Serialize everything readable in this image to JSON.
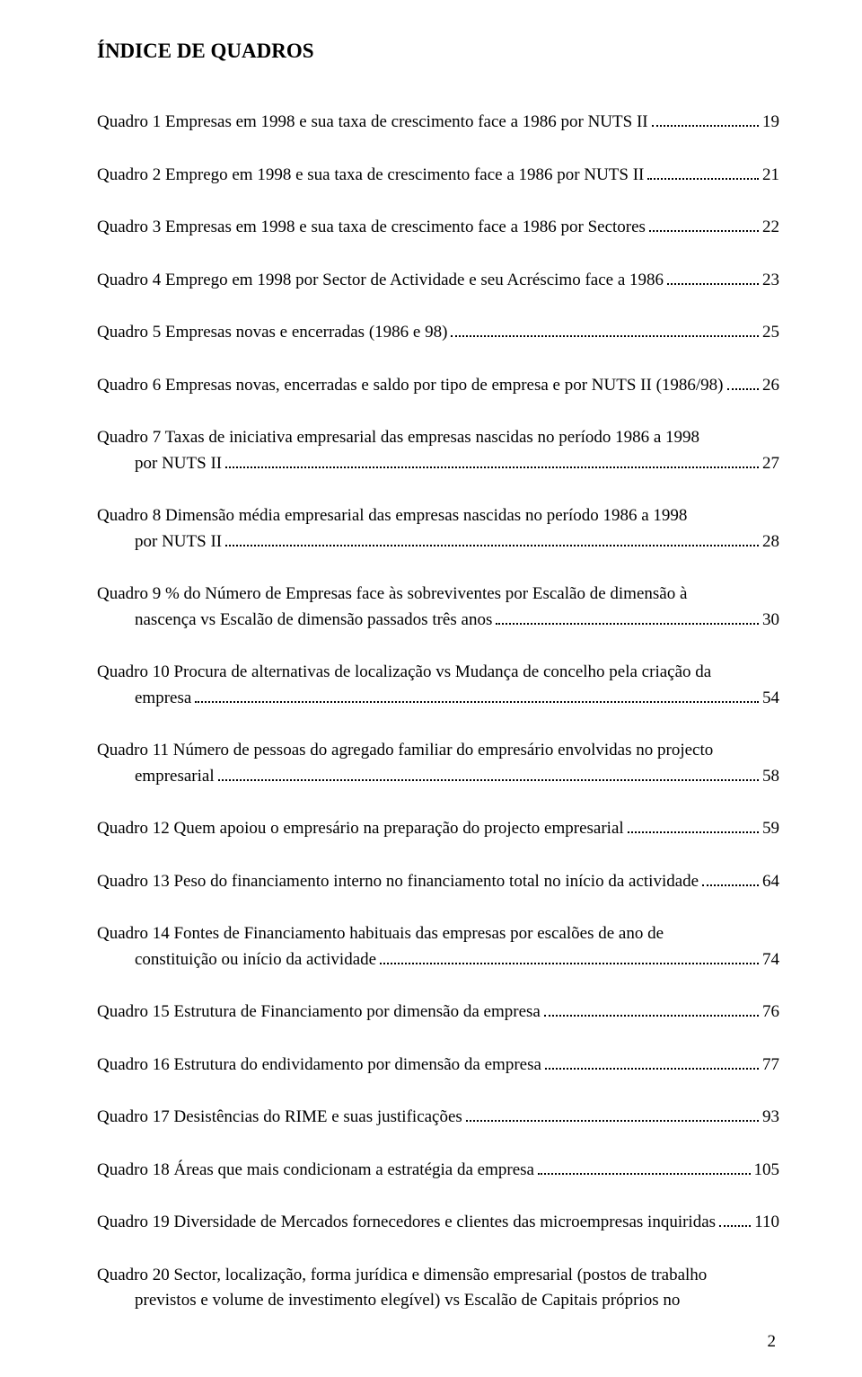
{
  "title": "ÍNDICE DE QUADROS",
  "entries": [
    {
      "lines": [
        "Quadro 1 Empresas em 1998 e sua taxa de crescimento face a 1986 por NUTS II"
      ],
      "page": "19",
      "hang": false
    },
    {
      "lines": [
        "Quadro 2 Emprego em 1998 e sua taxa de crescimento face a 1986 por NUTS II"
      ],
      "page": "21",
      "hang": false
    },
    {
      "lines": [
        "Quadro 3 Empresas em 1998 e sua taxa de crescimento face a 1986 por Sectores"
      ],
      "page": "22",
      "hang": false
    },
    {
      "lines": [
        "Quadro 4 Emprego em 1998 por Sector de Actividade e seu Acréscimo face a 1986"
      ],
      "page": "23",
      "hang": false
    },
    {
      "lines": [
        "Quadro 5 Empresas novas e encerradas (1986 e 98)"
      ],
      "page": "25",
      "hang": false
    },
    {
      "lines": [
        "Quadro 6 Empresas novas, encerradas e saldo por tipo de empresa e por NUTS II (1986/98)"
      ],
      "page": "26",
      "hang": false
    },
    {
      "lines": [
        "Quadro 7 Taxas de iniciativa empresarial das empresas nascidas no período  1986 a 1998",
        "por NUTS II"
      ],
      "page": "27",
      "hang": true
    },
    {
      "lines": [
        "Quadro 8 Dimensão média empresarial das empresas nascidas no período  1986 a 1998",
        "por NUTS II"
      ],
      "page": "28",
      "hang": true
    },
    {
      "lines": [
        "Quadro 9 % do Número de Empresas face às sobreviventes por Escalão de dimensão à",
        "nascença vs  Escalão de dimensão passados três anos"
      ],
      "page": "30",
      "hang": true
    },
    {
      "lines": [
        "Quadro 10 Procura de alternativas de localização vs Mudança de concelho pela criação da",
        "empresa"
      ],
      "page": "54",
      "hang": true
    },
    {
      "lines": [
        "Quadro 11 Número de pessoas do agregado familiar do empresário envolvidas no projecto",
        "empresarial"
      ],
      "page": "58",
      "hang": true
    },
    {
      "lines": [
        "Quadro 12 Quem apoiou o empresário na preparação do projecto empresarial"
      ],
      "page": "59",
      "hang": false
    },
    {
      "lines": [
        "Quadro 13 Peso do financiamento interno no financiamento total no início da actividade"
      ],
      "page": "64",
      "hang": false
    },
    {
      "lines": [
        "Quadro 14 Fontes de Financiamento habituais das empresas por escalões de ano de",
        "constituição ou início da actividade"
      ],
      "page": "74",
      "hang": true
    },
    {
      "lines": [
        "Quadro 15 Estrutura de Financiamento por dimensão da empresa"
      ],
      "page": "76",
      "hang": false
    },
    {
      "lines": [
        "Quadro 16 Estrutura do endividamento por dimensão da empresa"
      ],
      "page": "77",
      "hang": false
    },
    {
      "lines": [
        "Quadro 17 Desistências do RIME e suas justificações"
      ],
      "page": "93",
      "hang": false
    },
    {
      "lines": [
        "Quadro 18 Áreas que mais condicionam a estratégia da empresa"
      ],
      "page": "105",
      "hang": false
    },
    {
      "lines": [
        "Quadro 19 Diversidade de Mercados fornecedores e clientes das microempresas inquiridas"
      ],
      "page": "110",
      "hang": false
    },
    {
      "lines": [
        "Quadro 20 Sector, localização, forma jurídica e dimensão empresarial (postos de trabalho",
        "previstos e volume de investimento elegível) vs Escalão de Capitais próprios no"
      ],
      "page": "",
      "hang": true
    }
  ],
  "footer": "2"
}
